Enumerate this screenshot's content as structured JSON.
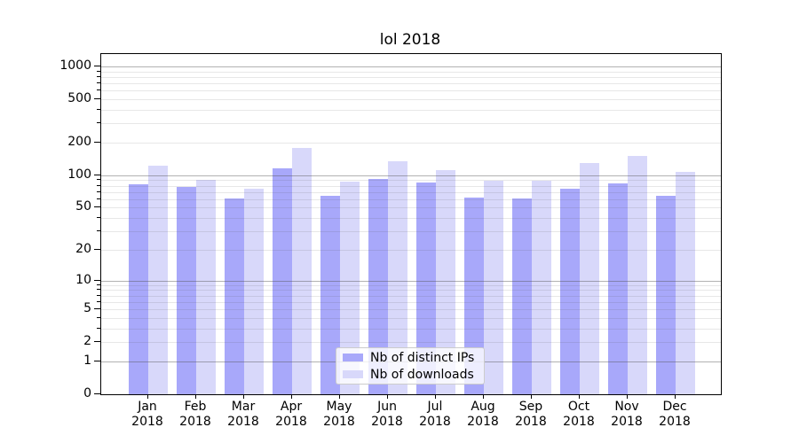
{
  "title": "lol 2018",
  "chart_data": {
    "type": "bar",
    "title": "lol 2018",
    "yscale": "log1p",
    "grid": true,
    "legend_position": "lower center",
    "ylim": [
      0,
      1300
    ],
    "y_ticks": [
      1000,
      500,
      200,
      100,
      50,
      20,
      10,
      5,
      2,
      1,
      0
    ],
    "y_minor_ticks": [
      2,
      3,
      4,
      5,
      6,
      7,
      8,
      9,
      20,
      30,
      40,
      50,
      60,
      70,
      80,
      90,
      200,
      300,
      400,
      500,
      600,
      700,
      800,
      900
    ],
    "y_major_gridlines": [
      1,
      10,
      100,
      1000
    ],
    "categories": [
      "Jan 2018",
      "Feb 2018",
      "Mar 2018",
      "Apr 2018",
      "May 2018",
      "Jun 2018",
      "Jul 2018",
      "Aug 2018",
      "Sep 2018",
      "Oct 2018",
      "Nov 2018",
      "Dec 2018"
    ],
    "x_tick_months": [
      "Jan",
      "Feb",
      "Mar",
      "Apr",
      "May",
      "Jun",
      "Jul",
      "Aug",
      "Sep",
      "Oct",
      "Nov",
      "Dec"
    ],
    "x_tick_year": "2018",
    "series": [
      {
        "name": "Nb of distinct IPs",
        "color": "#a8a8fa",
        "values": [
          82,
          78,
          61,
          115,
          64,
          92,
          86,
          62,
          61,
          75,
          84,
          64
        ]
      },
      {
        "name": "Nb of downloads",
        "color": "#d8d8fa",
        "values": [
          122,
          91,
          75,
          178,
          88,
          136,
          112,
          89,
          89,
          129,
          151,
          108
        ]
      }
    ]
  },
  "colors": {
    "background": "#ffffff",
    "spine": "#000000",
    "text": "#000000",
    "grid_major": "rgba(85,85,85,0.45)",
    "grid_minor": "rgba(85,85,85,0.14)",
    "legend_bg": "rgba(255,255,255,0.8)",
    "legend_border": "#cccccc"
  }
}
